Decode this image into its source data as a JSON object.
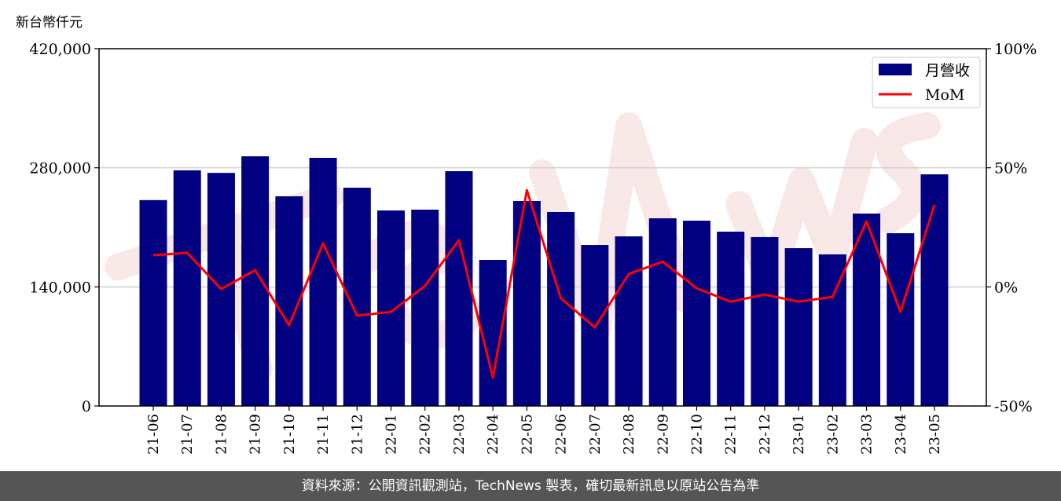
{
  "watermark": "TechNews",
  "footer": "資料來源：公開資訊觀測站，TechNews 製表，確切最新訊息以原站公告為準",
  "chart_data": {
    "type": "bar+line",
    "title": "",
    "ylabel": "新台幣仟元",
    "ylim": [
      0,
      420000
    ],
    "yticks": [
      "0",
      "140,000",
      "280,000",
      "420,000"
    ],
    "y2lim": [
      -50,
      100
    ],
    "y2ticks": [
      "-50%",
      "0%",
      "50%",
      "100%"
    ],
    "grid": "horizontal",
    "legend_position": "top-right",
    "categories": [
      "21-06",
      "21-07",
      "21-08",
      "21-09",
      "21-10",
      "21-11",
      "21-12",
      "22-01",
      "22-02",
      "22-03",
      "22-04",
      "22-05",
      "22-06",
      "22-07",
      "22-08",
      "22-09",
      "22-10",
      "22-11",
      "22-12",
      "23-01",
      "23-02",
      "23-03",
      "23-04",
      "23-05"
    ],
    "series": [
      {
        "name": "月營收",
        "type": "bar",
        "axis": "left",
        "color": "#000080",
        "values": [
          242000,
          277000,
          274000,
          293500,
          246500,
          291700,
          256600,
          229800,
          230800,
          276000,
          171700,
          240900,
          228000,
          189200,
          199400,
          220600,
          217800,
          204900,
          198500,
          185500,
          178200,
          226200,
          203100,
          272300
        ]
      },
      {
        "name": "MoM",
        "type": "line",
        "axis": "right",
        "unit": "%",
        "color": "#ff0000",
        "values": [
          13.3,
          14.3,
          -0.9,
          7.0,
          -16.1,
          18.3,
          -12.1,
          -10.5,
          0.4,
          19.6,
          -38.1,
          40.6,
          -4.8,
          -17.0,
          5.4,
          10.6,
          -0.6,
          -6.2,
          -3.2,
          -6.2,
          -4.2,
          27.5,
          -10.5,
          34.4
        ]
      }
    ]
  }
}
